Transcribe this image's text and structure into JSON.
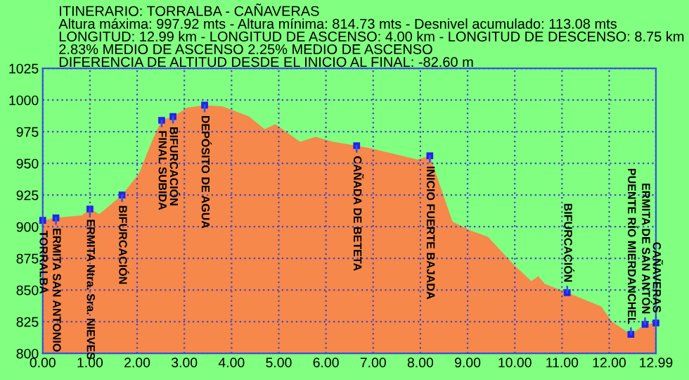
{
  "chart_data": {
    "type": "area",
    "title": "ITINERARIO: TORRALBA - CAÑAVERAS",
    "subtitle": "Altura máxima: 997.92 mts - Altura mínima: 814.73 mts - Desnivel acumulado: 113.08 mts",
    "x": [
      0.0,
      0.28,
      0.83,
      1.0,
      1.2,
      1.68,
      2.04,
      2.32,
      2.52,
      2.76,
      3.06,
      3.43,
      3.81,
      4.37,
      4.7,
      4.93,
      5.45,
      5.78,
      6.15,
      6.65,
      6.93,
      7.94,
      8.2,
      8.68,
      9.06,
      9.43,
      9.98,
      10.35,
      10.5,
      10.63,
      11.11,
      11.83,
      12.06,
      12.3,
      12.46,
      12.76,
      12.99
    ],
    "series": [
      {
        "color": "#f5884a",
        "values": [
          905,
          907,
          909,
          914,
          910,
          925,
          942,
          968,
          984,
          987,
          994,
          996,
          995,
          987,
          977,
          981,
          967,
          971,
          967,
          964,
          962,
          953,
          956,
          904,
          897,
          892,
          870,
          857,
          861,
          855,
          848,
          837,
          825,
          819,
          815,
          823,
          824
        ]
      }
    ],
    "xlim": [
      0,
      12.99
    ],
    "ylim": [
      800,
      1025
    ],
    "xticks": [
      {
        "value": 0,
        "label": "0.00"
      },
      {
        "value": 1,
        "label": "1.00"
      },
      {
        "value": 2,
        "label": "2.00"
      },
      {
        "value": 3,
        "label": "3.00"
      },
      {
        "value": 4,
        "label": "4.00"
      },
      {
        "value": 5,
        "label": "5.00"
      },
      {
        "value": 6,
        "label": "6.00"
      },
      {
        "value": 7,
        "label": "7.00"
      },
      {
        "value": 8,
        "label": "8.00"
      },
      {
        "value": 9,
        "label": "9.00"
      },
      {
        "value": 10,
        "label": "10.00"
      },
      {
        "value": 11,
        "label": "11.00"
      },
      {
        "value": 12,
        "label": "12.00"
      },
      {
        "value": 12.99,
        "label": "12.99"
      }
    ],
    "yticks": [
      800,
      825,
      850,
      875,
      900,
      925,
      950,
      975,
      1000,
      1025
    ],
    "grid": true,
    "annotations": [
      "LONGITUD: 12.99 km - LONGITUD DE ASCENSO: 4.00 km - LONGITUD DE DESCENSO: 8.75 km",
      "2.83% MEDIO DE ASCENSO 2.25% MEDIO DE ASCENSO",
      "DIFERENCIA DE ALTITUD DESDE EL INICIO AL FINAL: -82.60 m",
      {
        "text": "TORRALBA",
        "x": 0.0,
        "y": 905
      },
      {
        "text": "ERMITA SAN ANTONIO",
        "x": 0.28,
        "y": 907
      },
      {
        "text": "ERMITA Ntra. Sra. NIEVES",
        "x": 1.0,
        "y": 914
      },
      {
        "text": "BIFURCACIÓN",
        "x": 1.68,
        "y": 925
      },
      {
        "text": "FINAL SUBIDA",
        "x": 2.52,
        "y": 984
      },
      {
        "text": "BIFURCACIÓN",
        "x": 2.76,
        "y": 987
      },
      {
        "text": "DEPÓSITO DE AGUA",
        "x": 3.43,
        "y": 996
      },
      {
        "text": "CAÑADA DE BETETA",
        "x": 6.65,
        "y": 964
      },
      {
        "text": "INICIO FUERTE BAJADA",
        "x": 8.2,
        "y": 956
      },
      {
        "text": "BIFURCACIÓN",
        "x": 11.11,
        "y": 848
      },
      {
        "text": "PUENTE RÍO MIERDANCHEL",
        "x": 12.46,
        "y": 815
      },
      {
        "text": "ERMITA DE SAN ANTÓN",
        "x": 12.76,
        "y": 823
      },
      {
        "text": "CAÑAVERAS",
        "x": 12.99,
        "y": 824
      }
    ]
  }
}
